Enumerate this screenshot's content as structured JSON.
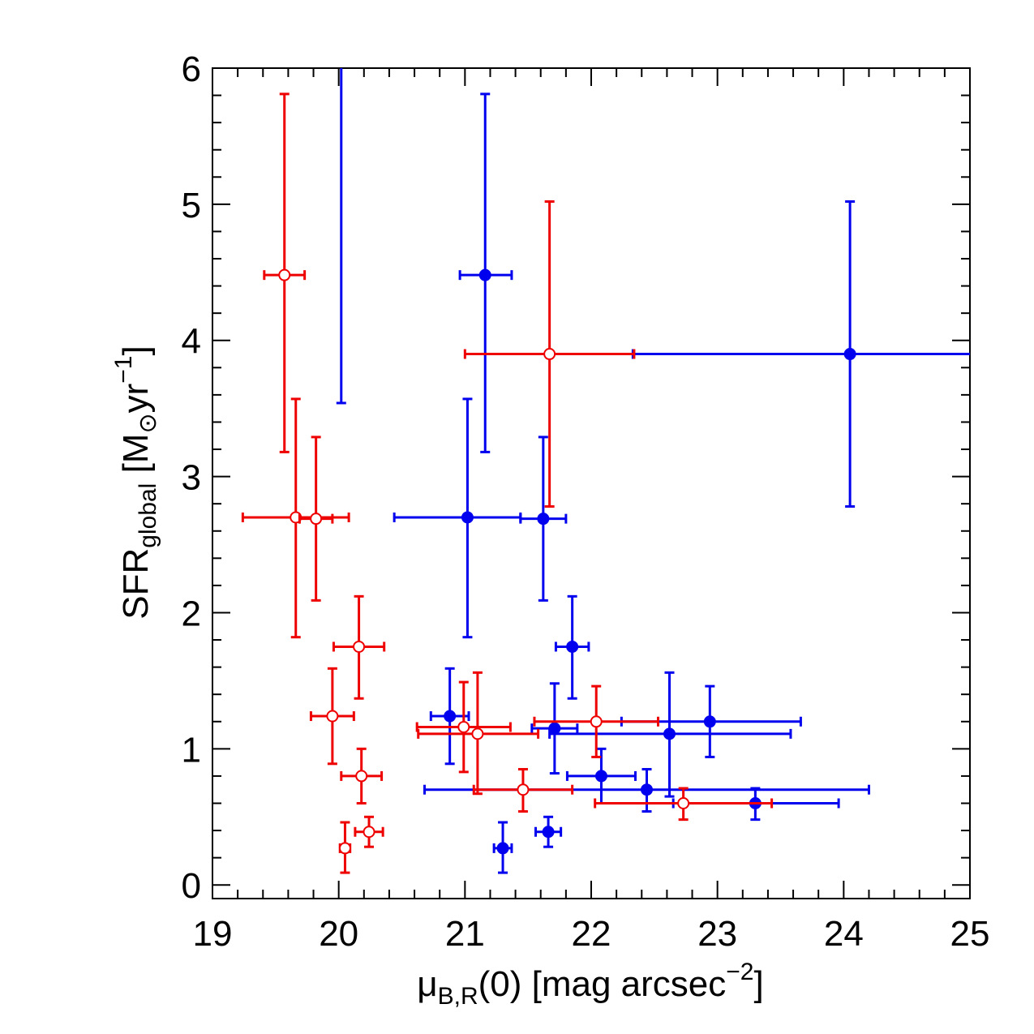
{
  "chart_data": {
    "type": "scatter",
    "xlabel": {
      "base": "μ",
      "sub": "B,R",
      "rest": "(0) [mag arcsec",
      "sup": "−2",
      "end": "]"
    },
    "ylabel": {
      "base": "SFR",
      "sub": "global",
      "rest": " [M",
      "sub2": "⊙",
      "mid": "yr",
      "sup": "−1",
      "end": "]"
    },
    "xlim": [
      19,
      25
    ],
    "ylim": [
      -0.1,
      6
    ],
    "xticks": [
      19,
      20,
      21,
      22,
      23,
      24,
      25
    ],
    "yticks": [
      0,
      1,
      2,
      3,
      4,
      5,
      6
    ],
    "colors": {
      "B": "#0000ee",
      "R": "#ee0000"
    },
    "series": [
      {
        "key": "B",
        "color": "#0000ee",
        "marker": "filled-circle",
        "points": [
          {
            "x": 21.16,
            "y": 4.48,
            "xerr": [
              0.2,
              0.21
            ],
            "yerr": [
              1.3,
              1.33
            ]
          },
          {
            "x": 24.05,
            "y": 3.9,
            "xerr": [
              1.72,
              1.0
            ],
            "yerr": [
              1.12,
              1.12
            ]
          },
          {
            "x": 21.02,
            "y": 2.7,
            "xerr": [
              0.58,
              0.42
            ],
            "yerr": [
              0.88,
              0.87
            ]
          },
          {
            "x": 21.62,
            "y": 2.69,
            "xerr": [
              0.18,
              0.18
            ],
            "yerr": [
              0.6,
              0.6
            ]
          },
          {
            "x": 20.02,
            "y": 6.05,
            "xerr": [
              0,
              0
            ],
            "yerr": [
              2.51,
              0
            ]
          },
          {
            "x": 21.85,
            "y": 1.75,
            "xerr": [
              0.13,
              0.13
            ],
            "yerr": [
              0.38,
              0.37
            ]
          },
          {
            "x": 20.88,
            "y": 1.24,
            "xerr": [
              0.15,
              0.15
            ],
            "yerr": [
              0.35,
              0.35
            ]
          },
          {
            "x": 21.71,
            "y": 1.15,
            "xerr": [
              0.18,
              0.18
            ],
            "yerr": [
              0.33,
              0.33
            ]
          },
          {
            "x": 22.94,
            "y": 1.2,
            "xerr": [
              0.7,
              0.72
            ],
            "yerr": [
              0.26,
              0.26
            ]
          },
          {
            "x": 22.62,
            "y": 1.11,
            "xerr": [
              0.95,
              0.96
            ],
            "yerr": [
              0.46,
              0.45
            ]
          },
          {
            "x": 22.08,
            "y": 0.8,
            "xerr": [
              0.27,
              0.27
            ],
            "yerr": [
              0.2,
              0.2
            ]
          },
          {
            "x": 22.44,
            "y": 0.7,
            "xerr": [
              1.76,
              1.76
            ],
            "yerr": [
              0.16,
              0.15
            ]
          },
          {
            "x": 23.3,
            "y": 0.6,
            "xerr": [
              0.65,
              0.66
            ],
            "yerr": [
              0.12,
              0.11
            ]
          },
          {
            "x": 21.3,
            "y": 0.27,
            "xerr": [
              0.07,
              0.07
            ],
            "yerr": [
              0.18,
              0.19
            ]
          },
          {
            "x": 21.66,
            "y": 0.39,
            "xerr": [
              0.1,
              0.1
            ],
            "yerr": [
              0.11,
              0.11
            ]
          }
        ]
      },
      {
        "key": "R",
        "color": "#ee0000",
        "marker": "open-circle",
        "points": [
          {
            "x": 19.57,
            "y": 4.48,
            "xerr": [
              0.16,
              0.16
            ],
            "yerr": [
              1.3,
              1.33
            ]
          },
          {
            "x": 21.67,
            "y": 3.9,
            "xerr": [
              0.67,
              0.67
            ],
            "yerr": [
              1.12,
              1.12
            ]
          },
          {
            "x": 19.66,
            "y": 2.7,
            "xerr": [
              0.42,
              0.42
            ],
            "yerr": [
              0.88,
              0.87
            ]
          },
          {
            "x": 19.82,
            "y": 2.69,
            "xerr": [
              0.13,
              0.13
            ],
            "yerr": [
              0.6,
              0.6
            ]
          },
          {
            "x": 20.16,
            "y": 1.75,
            "xerr": [
              0.2,
              0.2
            ],
            "yerr": [
              0.38,
              0.37
            ]
          },
          {
            "x": 19.95,
            "y": 1.24,
            "xerr": [
              0.17,
              0.17
            ],
            "yerr": [
              0.35,
              0.35
            ]
          },
          {
            "x": 20.99,
            "y": 1.16,
            "xerr": [
              0.37,
              0.37
            ],
            "yerr": [
              0.33,
              0.33
            ]
          },
          {
            "x": 21.1,
            "y": 1.11,
            "xerr": [
              0.47,
              0.48
            ],
            "yerr": [
              0.44,
              0.45
            ]
          },
          {
            "x": 22.04,
            "y": 1.2,
            "xerr": [
              0.49,
              0.49
            ],
            "yerr": [
              0.26,
              0.26
            ]
          },
          {
            "x": 20.18,
            "y": 0.8,
            "xerr": [
              0.16,
              0.16
            ],
            "yerr": [
              0.2,
              0.2
            ]
          },
          {
            "x": 21.46,
            "y": 0.7,
            "xerr": [
              0.39,
              0.39
            ],
            "yerr": [
              0.16,
              0.15
            ]
          },
          {
            "x": 22.73,
            "y": 0.6,
            "xerr": [
              0.7,
              0.7
            ],
            "yerr": [
              0.12,
              0.11
            ]
          },
          {
            "x": 20.05,
            "y": 0.27,
            "xerr": [
              0.04,
              0.04
            ],
            "yerr": [
              0.18,
              0.19
            ]
          },
          {
            "x": 20.24,
            "y": 0.39,
            "xerr": [
              0.11,
              0.11
            ],
            "yerr": [
              0.11,
              0.11
            ]
          }
        ]
      }
    ]
  }
}
